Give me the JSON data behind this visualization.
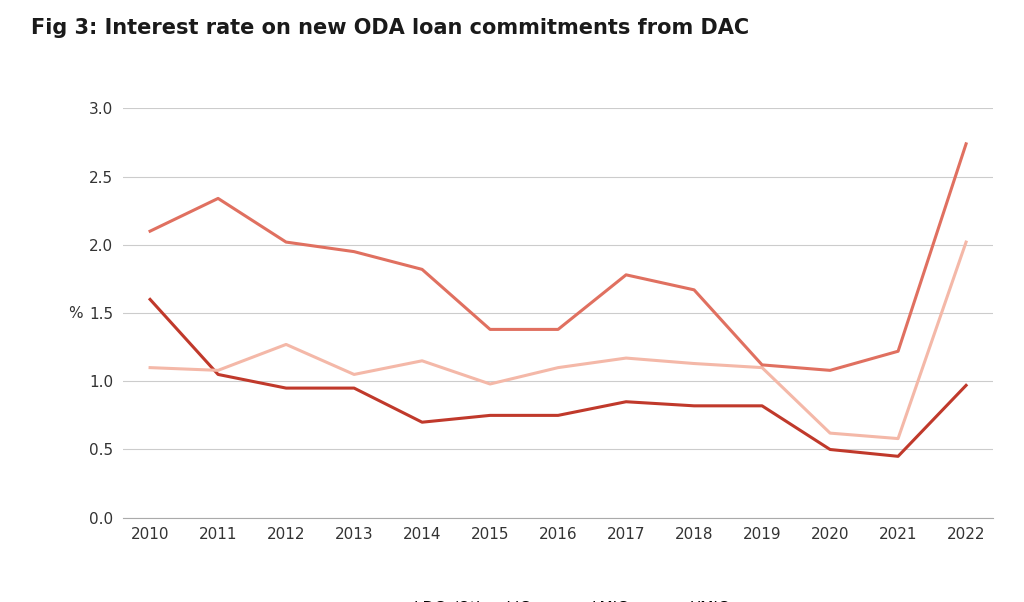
{
  "title": "Fig 3: Interest rate on new ODA loan commitments from DAC",
  "ylabel": "%",
  "years": [
    2010,
    2011,
    2012,
    2013,
    2014,
    2015,
    2016,
    2017,
    2018,
    2019,
    2020,
    2021,
    2022
  ],
  "LDCs": [
    1.6,
    1.05,
    0.95,
    0.95,
    0.7,
    0.75,
    0.75,
    0.85,
    0.82,
    0.82,
    0.5,
    0.45,
    0.97
  ],
  "LMICs": [
    1.1,
    1.08,
    1.27,
    1.05,
    1.15,
    0.98,
    1.1,
    1.17,
    1.13,
    1.1,
    0.62,
    0.58,
    2.02
  ],
  "UMICs": [
    2.1,
    2.34,
    2.02,
    1.95,
    1.82,
    1.38,
    1.38,
    1.78,
    1.67,
    1.12,
    1.08,
    1.22,
    2.74
  ],
  "LDCs_color": "#c0392b",
  "LMICs_color": "#f4b8a8",
  "UMICs_color": "#e07060",
  "ylim": [
    0.0,
    3.0
  ],
  "yticks": [
    0.0,
    0.5,
    1.0,
    1.5,
    2.0,
    2.5,
    3.0
  ],
  "background_color": "#ffffff",
  "grid_color": "#cccccc",
  "linewidth": 2.2,
  "title_fontsize": 15,
  "tick_fontsize": 11,
  "legend_fontsize": 11
}
